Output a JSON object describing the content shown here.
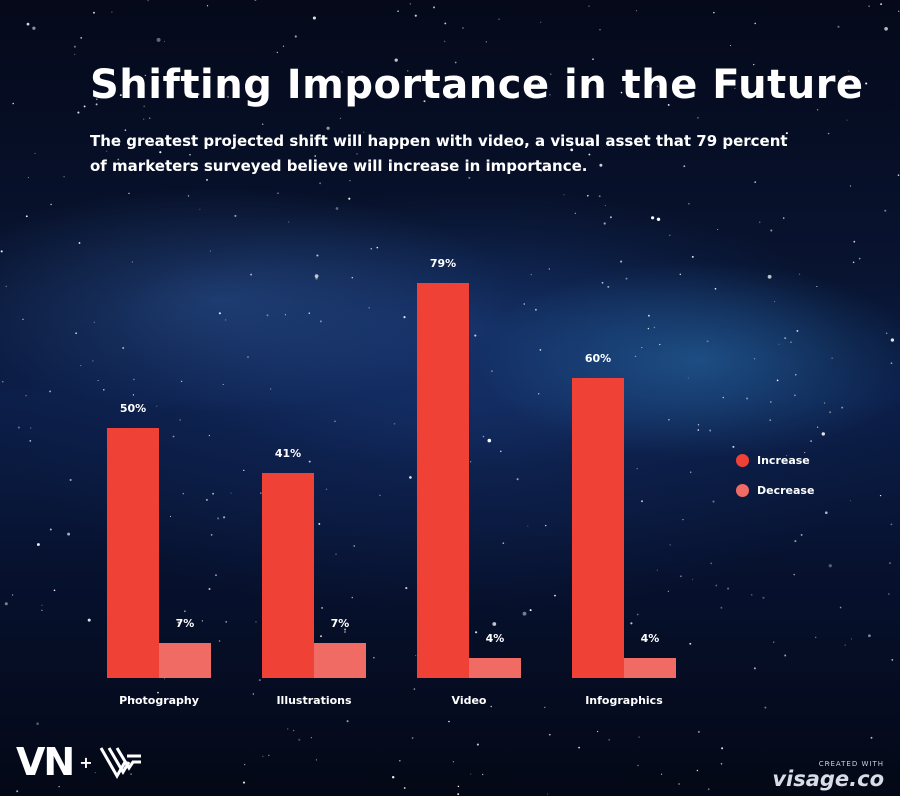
{
  "header": {
    "title": "Shifting Importance in the Future",
    "subtitle": "The greatest projected shift will happen with video, a visual asset that 79 percent of marketers surveyed believe will increase in importance."
  },
  "chart_data": {
    "type": "bar",
    "title": "Shifting Importance in the Future",
    "categories": [
      "Photography",
      "Illustrations",
      "Video",
      "Infographics"
    ],
    "series": [
      {
        "name": "Increase",
        "values": [
          50,
          41,
          79,
          60
        ],
        "labels": [
          "50%",
          "41%",
          "79%",
          "60%"
        ],
        "color": "#ef4135"
      },
      {
        "name": "Decrease",
        "values": [
          7,
          7,
          4,
          4
        ],
        "labels": [
          "7%",
          "7%",
          "4%",
          "4%"
        ],
        "color": "#f06b63"
      }
    ],
    "ylim": [
      0,
      100
    ],
    "grid": false,
    "legend_position": "right"
  },
  "legend": {
    "items": [
      {
        "label": "Increase",
        "color": "#ef4135"
      },
      {
        "label": "Decrease",
        "color": "#f06b63"
      }
    ]
  },
  "footer": {
    "logo_text": "VN",
    "logo_plus": "+",
    "credit_small": "CREATED WITH",
    "credit_brand": "visage.co"
  }
}
